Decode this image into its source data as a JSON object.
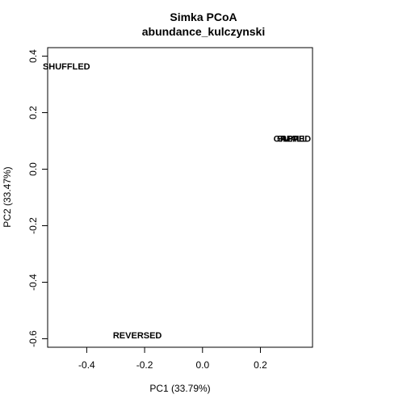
{
  "chart_data": {
    "type": "scatter",
    "title": "Simka PCoA",
    "subtitle": "abundance_kulczynski",
    "xlabel": "PC1 (33.79%)",
    "ylabel": "PC2 (33.47%)",
    "xlim": [
      -0.535,
      0.38
    ],
    "ylim": [
      -0.63,
      0.43
    ],
    "x_ticks": [
      -0.4,
      -0.2,
      0.0,
      0.2
    ],
    "x_tick_labels": [
      "-0.4",
      "-0.2",
      "0.0",
      "0.2"
    ],
    "y_ticks": [
      -0.6,
      -0.4,
      -0.2,
      0.0,
      0.2,
      0.4
    ],
    "y_tick_labels": [
      "-0.6",
      "-0.4",
      "-0.2",
      "0.0",
      "0.2",
      "0.4"
    ],
    "grid": false,
    "points": [
      {
        "label": "SHUFFLED",
        "x": -0.47,
        "y": 0.365
      },
      {
        "label": "GAPPED",
        "x": 0.31,
        "y": 0.108
      },
      {
        "label": "SMALL",
        "x": 0.31,
        "y": 0.108
      },
      {
        "label": "REAL",
        "x": 0.31,
        "y": 0.108
      },
      {
        "label": "REVERSED",
        "x": -0.225,
        "y": -0.587
      }
    ]
  }
}
